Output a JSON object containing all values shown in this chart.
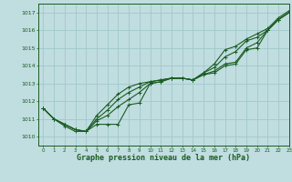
{
  "title": "Graphe pression niveau de la mer (hPa)",
  "background_color": "#c0dde0",
  "grid_color": "#a0c8cc",
  "line_color": "#1a5c20",
  "xlim": [
    -0.5,
    23
  ],
  "ylim": [
    1009.5,
    1017.5
  ],
  "xticks": [
    0,
    1,
    2,
    3,
    4,
    5,
    6,
    7,
    8,
    9,
    10,
    11,
    12,
    13,
    14,
    15,
    16,
    17,
    18,
    19,
    20,
    21,
    22,
    23
  ],
  "yticks": [
    1010,
    1011,
    1012,
    1013,
    1014,
    1015,
    1016,
    1017
  ],
  "series": [
    [
      1011.6,
      1011.0,
      1010.6,
      1010.3,
      1010.3,
      1010.7,
      1010.7,
      1010.7,
      1011.8,
      1011.9,
      1013.0,
      1013.1,
      1013.3,
      1013.3,
      1013.2,
      1013.5,
      1013.6,
      1014.0,
      1014.1,
      1014.9,
      1015.0,
      1016.0,
      1016.6,
      1017.0
    ],
    [
      1011.6,
      1011.0,
      1010.7,
      1010.4,
      1010.3,
      1010.9,
      1011.2,
      1011.7,
      1012.1,
      1012.5,
      1013.0,
      1013.1,
      1013.3,
      1013.3,
      1013.2,
      1013.5,
      1013.7,
      1014.1,
      1014.2,
      1015.0,
      1015.3,
      1016.0,
      1016.6,
      1017.0
    ],
    [
      1011.6,
      1011.0,
      1010.7,
      1010.4,
      1010.3,
      1011.0,
      1011.5,
      1012.1,
      1012.5,
      1012.8,
      1013.1,
      1013.2,
      1013.3,
      1013.3,
      1013.2,
      1013.6,
      1013.9,
      1014.5,
      1014.8,
      1015.4,
      1015.6,
      1016.0,
      1016.6,
      1017.0
    ],
    [
      1011.6,
      1011.0,
      1010.7,
      1010.4,
      1010.3,
      1011.2,
      1011.8,
      1012.4,
      1012.8,
      1013.0,
      1013.1,
      1013.2,
      1013.3,
      1013.3,
      1013.2,
      1013.6,
      1014.1,
      1014.9,
      1015.1,
      1015.5,
      1015.8,
      1016.1,
      1016.7,
      1017.1
    ]
  ]
}
